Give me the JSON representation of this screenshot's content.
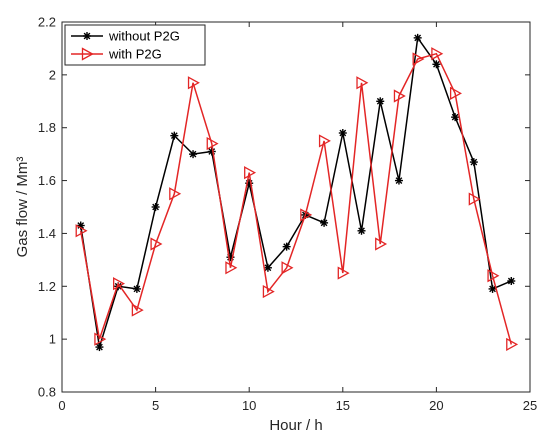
{
  "chart_data": {
    "type": "line",
    "xlabel": "Hour / h",
    "ylabel": "Gas flow / Mm³",
    "xlim": [
      0,
      25
    ],
    "ylim": [
      0.8,
      2.2
    ],
    "xticks": [
      0,
      5,
      10,
      15,
      20,
      25
    ],
    "yticks": [
      0.8,
      1,
      1.2,
      1.4,
      1.6,
      1.8,
      2,
      2.2
    ],
    "grid": false,
    "legend_position": "top-left",
    "x": [
      1,
      2,
      3,
      4,
      5,
      6,
      7,
      8,
      9,
      10,
      11,
      12,
      13,
      14,
      15,
      16,
      17,
      18,
      19,
      20,
      21,
      22,
      23,
      24
    ],
    "series": [
      {
        "name": "without P2G",
        "color": "#000000",
        "marker": "asterisk",
        "values": [
          1.43,
          0.97,
          1.2,
          1.19,
          1.5,
          1.77,
          1.7,
          1.71,
          1.31,
          1.59,
          1.27,
          1.35,
          1.47,
          1.44,
          1.78,
          1.41,
          1.9,
          1.6,
          2.14,
          2.04,
          1.84,
          1.67,
          1.19,
          1.22
        ]
      },
      {
        "name": "with P2G",
        "color": "#e32626",
        "marker": "triangle-right",
        "values": [
          1.41,
          1.0,
          1.21,
          1.11,
          1.36,
          1.55,
          1.97,
          1.74,
          1.27,
          1.63,
          1.18,
          1.27,
          1.47,
          1.75,
          1.25,
          1.97,
          1.36,
          1.92,
          2.06,
          2.08,
          1.93,
          1.53,
          1.24,
          0.98
        ]
      }
    ]
  }
}
